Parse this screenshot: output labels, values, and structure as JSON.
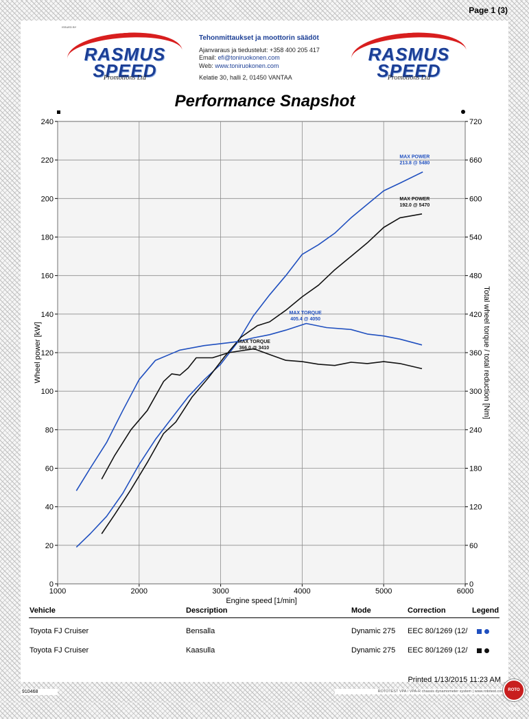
{
  "header": {
    "page_label": "Page 1 (3)",
    "issued_by": "ISSUED BY",
    "logo": {
      "line1": "RASMUS",
      "line2": "SPEED",
      "line3": "Promotions Ltd"
    },
    "contact": {
      "title": "Tehonmittaukset ja moottorin säädöt",
      "phone": "Ajanvaraus ja tiedustelut: +358 400 205 417",
      "email_label": "Email: ",
      "email": "efi@toniruokonen.com",
      "web_label": "Web: ",
      "web": "www.toniruokonen.com",
      "address": "Kelatie 30, halli 2, 01450 VANTAA"
    }
  },
  "chart_data": {
    "type": "line",
    "title": "Performance Snapshot",
    "xlabel": "Engine speed [1/min]",
    "ylabel": "Wheel power [kW]",
    "y2label": "Total wheel torque / total reduction [Nm]",
    "xlim": [
      1000,
      6000
    ],
    "ylim": [
      0,
      240
    ],
    "y2lim": [
      0,
      720
    ],
    "x_ticks": [
      1000,
      2000,
      3000,
      4000,
      5000,
      6000
    ],
    "y_ticks": [
      0,
      20,
      40,
      60,
      80,
      100,
      120,
      140,
      160,
      180,
      200,
      220,
      240
    ],
    "y2_ticks": [
      0,
      60,
      120,
      180,
      240,
      300,
      360,
      420,
      480,
      540,
      600,
      660,
      720
    ],
    "grid": true,
    "series": [
      {
        "axis": "left",
        "color": "#1f4fbf",
        "points": [
          [
            1230,
            19
          ],
          [
            1400,
            26
          ],
          [
            1600,
            35
          ],
          [
            1800,
            47
          ],
          [
            2000,
            62
          ],
          [
            2200,
            75
          ],
          [
            2400,
            86
          ],
          [
            2600,
            97
          ],
          [
            2800,
            106
          ],
          [
            3000,
            114
          ],
          [
            3200,
            125
          ],
          [
            3400,
            139
          ],
          [
            3600,
            150
          ],
          [
            3800,
            160
          ],
          [
            4000,
            171
          ],
          [
            4200,
            176
          ],
          [
            4400,
            182
          ],
          [
            4600,
            190
          ],
          [
            4800,
            197
          ],
          [
            5000,
            204
          ],
          [
            5200,
            208
          ],
          [
            5480,
            213.8
          ]
        ]
      },
      {
        "axis": "left",
        "color": "#111111",
        "points": [
          [
            1540,
            26
          ],
          [
            1700,
            36
          ],
          [
            1900,
            49
          ],
          [
            2100,
            63
          ],
          [
            2300,
            78
          ],
          [
            2450,
            84
          ],
          [
            2650,
            97
          ],
          [
            2850,
            107
          ],
          [
            3050,
            118
          ],
          [
            3250,
            128
          ],
          [
            3450,
            134
          ],
          [
            3600,
            136
          ],
          [
            3800,
            142
          ],
          [
            4000,
            149
          ],
          [
            4200,
            155
          ],
          [
            4400,
            163
          ],
          [
            4600,
            170
          ],
          [
            4800,
            177
          ],
          [
            5000,
            185
          ],
          [
            5200,
            190
          ],
          [
            5470,
            192
          ]
        ]
      },
      {
        "axis": "right",
        "color": "#1f4fbf",
        "points": [
          [
            1230,
            145
          ],
          [
            1400,
            180
          ],
          [
            1600,
            220
          ],
          [
            1800,
            270
          ],
          [
            2000,
            318
          ],
          [
            2200,
            348
          ],
          [
            2500,
            364
          ],
          [
            2800,
            371
          ],
          [
            3000,
            374
          ],
          [
            3200,
            377
          ],
          [
            3400,
            383
          ],
          [
            3600,
            388
          ],
          [
            3800,
            395
          ],
          [
            4050,
            405.4
          ],
          [
            4300,
            399
          ],
          [
            4600,
            396
          ],
          [
            4800,
            389
          ],
          [
            5000,
            386
          ],
          [
            5200,
            381
          ],
          [
            5470,
            372
          ]
        ]
      },
      {
        "axis": "right",
        "color": "#111111",
        "points": [
          [
            1540,
            163
          ],
          [
            1700,
            200
          ],
          [
            1900,
            240
          ],
          [
            2100,
            270
          ],
          [
            2300,
            315
          ],
          [
            2400,
            327
          ],
          [
            2500,
            325
          ],
          [
            2600,
            336
          ],
          [
            2700,
            352
          ],
          [
            2900,
            352
          ],
          [
            3100,
            360
          ],
          [
            3410,
            366
          ],
          [
            3600,
            357
          ],
          [
            3800,
            348
          ],
          [
            4000,
            346
          ],
          [
            4200,
            342
          ],
          [
            4400,
            340
          ],
          [
            4600,
            345
          ],
          [
            4800,
            343
          ],
          [
            5000,
            346
          ],
          [
            5200,
            343
          ],
          [
            5470,
            335
          ]
        ]
      }
    ],
    "annotations": [
      {
        "label": "MAX POWER",
        "value": "213.8 @ 5480",
        "color": "#1f4fbf",
        "x": 5380,
        "y": 221
      },
      {
        "label": "MAX POWER",
        "value": "192.0 @ 5470",
        "color": "#111111",
        "x": 5380,
        "y": 199
      },
      {
        "label": "MAX TORQUE",
        "value": "405.4 @ 4050",
        "color": "#1f4fbf",
        "x": 4040,
        "y": 140
      },
      {
        "label": "MAX TORQUE",
        "value": "366.0 @ 3410",
        "color": "#111111",
        "x": 3410,
        "y": 125
      }
    ]
  },
  "table": {
    "headers": {
      "vehicle": "Vehicle",
      "description": "Description",
      "mode": "Mode",
      "correction": "Correction",
      "legend": "Legend"
    },
    "rows": [
      {
        "vehicle": "Toyota FJ Cruiser",
        "description": "Bensalla",
        "mode": "Dynamic 275",
        "correction": "EEC 80/1269 (12/",
        "legend_color": "#1f4fbf"
      },
      {
        "vehicle": "Toyota FJ Cruiser",
        "description": "Kaasulla",
        "mode": "Dynamic 275",
        "correction": "EEC 80/1269 (12/",
        "legend_color": "#111111"
      }
    ]
  },
  "footer": {
    "printed": "Printed 1/13/2015 11:23 AM",
    "report_id": "910468",
    "system": "ROTOTEST VPA / VPA-R chassis dynamometer system | www.rototest.com",
    "badge": "ROTO TEST"
  }
}
